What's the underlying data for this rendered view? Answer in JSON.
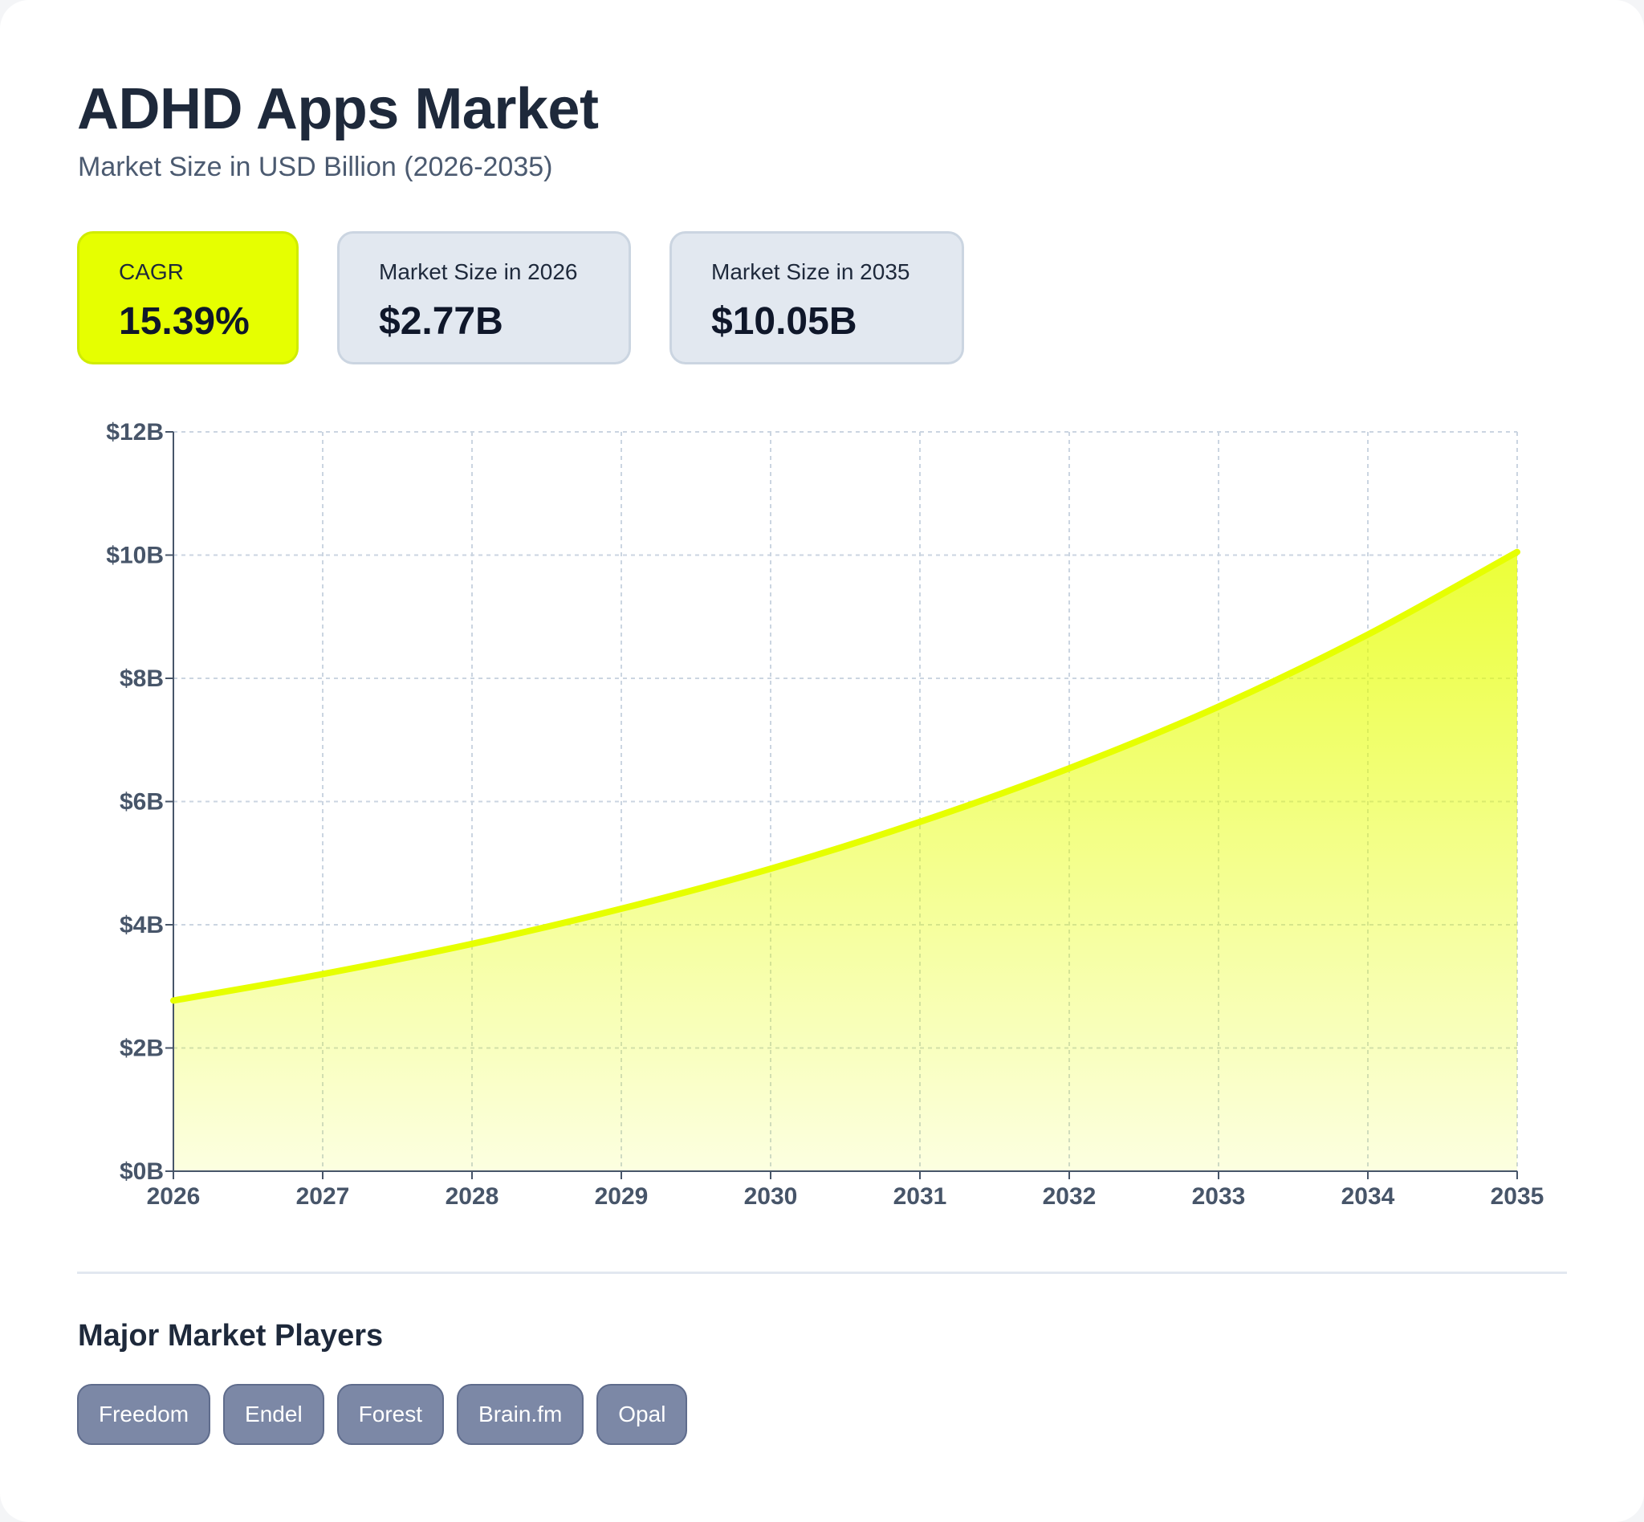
{
  "header": {
    "title": "ADHD Apps Market",
    "subtitle": "Market Size in USD Billion (2026-2035)"
  },
  "stats": [
    {
      "label": "CAGR",
      "value": "15.39%"
    },
    {
      "label": "Market Size in 2026",
      "value": "$2.77B"
    },
    {
      "label": "Market Size in 2035",
      "value": "$10.05B"
    }
  ],
  "colors": {
    "accent": "#e6ff00",
    "line": "#e6ff00",
    "grid": "#cbd5e1",
    "axis": "#475569",
    "chip": "#7c88a6"
  },
  "chart_data": {
    "type": "area",
    "title": "",
    "xlabel": "",
    "ylabel": "",
    "x": [
      2026,
      2027,
      2028,
      2029,
      2030,
      2031,
      2032,
      2033,
      2034,
      2035
    ],
    "series": [
      {
        "values": [
          2.77,
          3.2,
          3.69,
          4.26,
          4.91,
          5.67,
          6.54,
          7.54,
          8.71,
          10.05
        ]
      }
    ],
    "ylim": [
      0,
      12
    ],
    "yticks": [
      0,
      2,
      4,
      6,
      8,
      10,
      12
    ],
    "ytick_labels": [
      "$0B",
      "$2B",
      "$4B",
      "$6B",
      "$8B",
      "$10B",
      "$12B"
    ],
    "xtick_labels": [
      "2026",
      "2027",
      "2028",
      "2029",
      "2030",
      "2031",
      "2032",
      "2033",
      "2034",
      "2035"
    ],
    "grid": true,
    "legend": "none"
  },
  "players_section": {
    "title": "Major Market Players",
    "players": [
      "Freedom",
      "Endel",
      "Forest",
      "Brain.fm",
      "Opal"
    ]
  }
}
